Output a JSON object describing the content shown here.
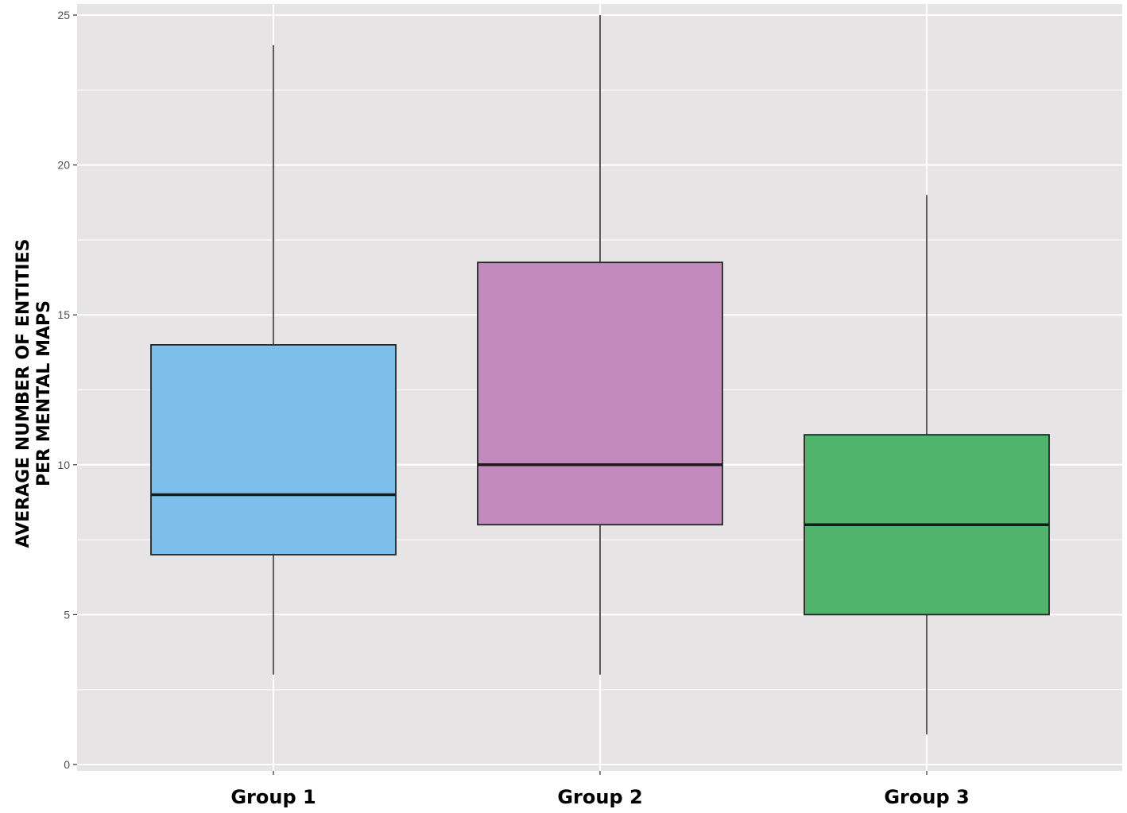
{
  "chart_data": {
    "type": "box",
    "ylabel_lines": [
      "AVERAGE NUMBER OF ENTITIES",
      "PER MENTAL MAPS"
    ],
    "xlabel": "",
    "ylim": [
      0,
      25
    ],
    "yticks": [
      0,
      5,
      10,
      15,
      20,
      25
    ],
    "grid": true,
    "legend": "none",
    "categories": [
      "Group 1",
      "Group 2",
      "Group 3"
    ],
    "boxes": [
      {
        "category": "Group 1",
        "min": 3,
        "q1": 7,
        "median": 9,
        "q3": 14,
        "max": 24,
        "color": "#7dbfea"
      },
      {
        "category": "Group 2",
        "min": 3,
        "q1": 8,
        "median": 10,
        "q3": 16.75,
        "max": 25,
        "color": "#c38abd"
      },
      {
        "category": "Group 3",
        "min": 1,
        "q1": 5,
        "median": 8,
        "q3": 11,
        "max": 19,
        "color": "#50b46c"
      }
    ]
  },
  "colors": {
    "panel_background": "#e6e4e5",
    "grid": "#ffffff",
    "outline": "#262626"
  }
}
